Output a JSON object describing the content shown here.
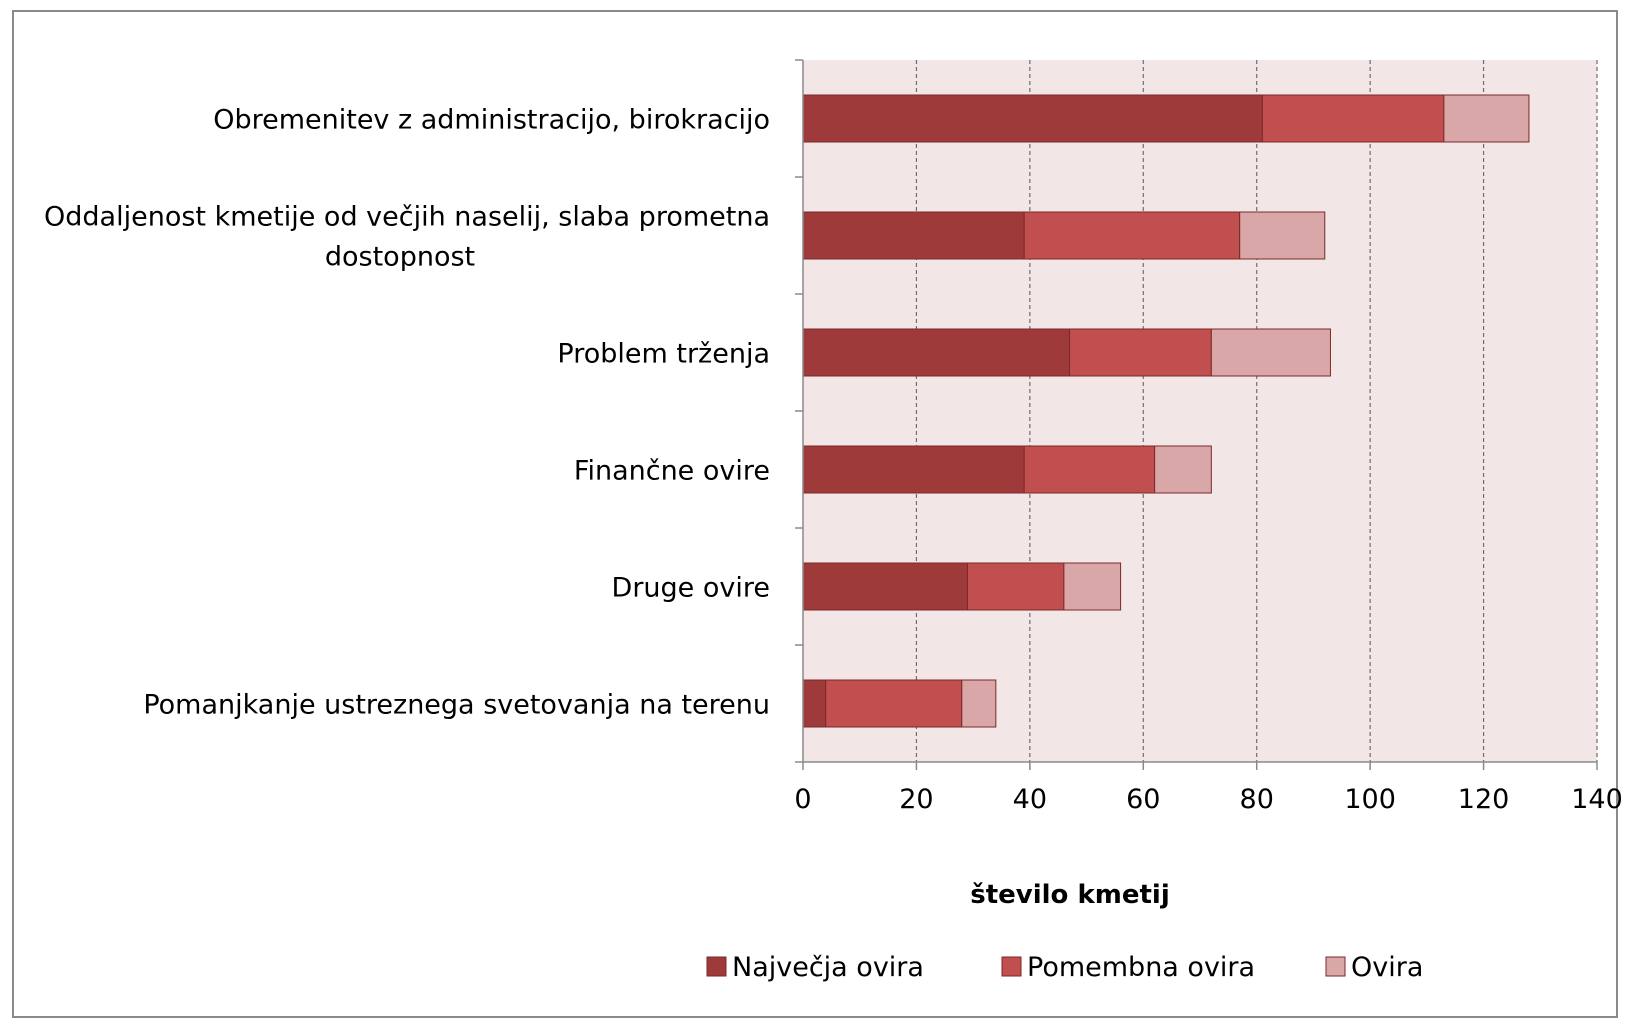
{
  "chart_data": {
    "type": "bar",
    "orientation": "horizontal",
    "stacked": true,
    "categories": [
      [
        "Obremenitev z administracijo, birokracijo"
      ],
      [
        "Oddaljenost kmetije od večjih naselij, slaba prometna",
        "dostopnost"
      ],
      [
        "Problem trženja"
      ],
      [
        "Finančne ovire"
      ],
      [
        "Druge ovire"
      ],
      [
        "Pomanjkanje ustreznega svetovanja na terenu"
      ]
    ],
    "series": [
      {
        "name": "Največja ovira",
        "color": "#9e3a3a",
        "values": [
          81,
          39,
          47,
          39,
          29,
          4
        ]
      },
      {
        "name": "Pomembna ovira",
        "color": "#c24f4f",
        "values": [
          32,
          38,
          25,
          23,
          17,
          24
        ]
      },
      {
        "name": "Ovira",
        "color": "#d9a7a7",
        "values": [
          15,
          15,
          21,
          10,
          10,
          6
        ]
      }
    ],
    "xlabel": "število kmetij",
    "xlim": [
      0,
      140
    ],
    "xticks": [
      0,
      20,
      40,
      60,
      80,
      100,
      120,
      140
    ],
    "grid": "vertical dashed",
    "plot_background": "#f3e6e6",
    "legend_position": "bottom"
  }
}
